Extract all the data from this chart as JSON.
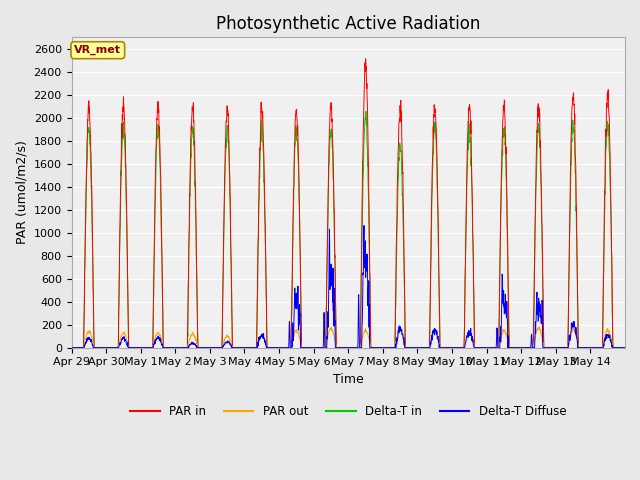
{
  "title": "Photosynthetic Active Radiation",
  "ylabel": "PAR (umol/m2/s)",
  "xlabel": "Time",
  "label_text": "VR_met",
  "legend_labels": [
    "PAR in",
    "PAR out",
    "Delta-T in",
    "Delta-T Diffuse"
  ],
  "legend_colors": [
    "#ff0000",
    "#ffa500",
    "#00cc00",
    "#0000ff"
  ],
  "ylim": [
    0,
    2700
  ],
  "yticks": [
    0,
    200,
    400,
    600,
    800,
    1000,
    1200,
    1400,
    1600,
    1800,
    2000,
    2200,
    2400,
    2600
  ],
  "background_color": "#e8e8e8",
  "plot_bg_color": "#f0f0f0",
  "days": [
    "Apr 29",
    "Apr 30",
    "May 1",
    "May 2",
    "May 3",
    "May 4",
    "May 5",
    "May 6",
    "May 7",
    "May 8",
    "May 9",
    "May 10",
    "May 11",
    "May 12",
    "May 13",
    "May 14"
  ],
  "par_in_peaks": [
    2100,
    2100,
    2100,
    2100,
    2060,
    2060,
    2070,
    2100,
    2450,
    2100,
    2100,
    2100,
    2100,
    2100,
    2200,
    2200
  ],
  "par_out_peaks": [
    140,
    130,
    130,
    120,
    100,
    100,
    150,
    170,
    150,
    150,
    140,
    130,
    150,
    170,
    160,
    150
  ],
  "delta_t_in_peaks": [
    1900,
    1900,
    1900,
    1900,
    1900,
    1900,
    1900,
    1900,
    2000,
    1750,
    1900,
    1900,
    1900,
    1900,
    1950,
    1950
  ],
  "delta_t_diffuse_peaks": [
    80,
    80,
    90,
    40,
    50,
    110,
    400,
    660,
    780,
    160,
    150,
    130,
    410,
    340,
    200,
    110
  ],
  "n_points_per_day": 144,
  "title_fontsize": 12,
  "axis_label_fontsize": 9,
  "tick_fontsize": 8
}
